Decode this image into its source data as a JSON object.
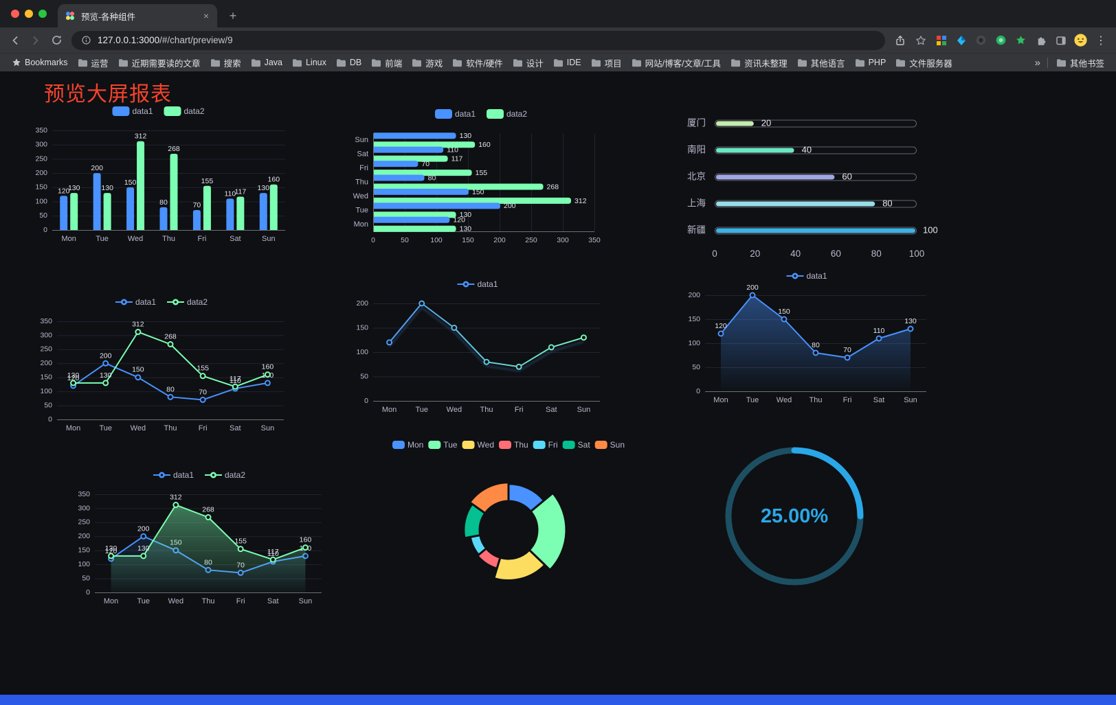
{
  "browser": {
    "tab_title": "预览-各种组件",
    "url_host": "127.0.0.1:3000",
    "url_path": "/#/chart/preview/9",
    "icons": {
      "tab_close": "×",
      "new_tab": "+",
      "menu": "⋮"
    },
    "bookmarks_bar": {
      "root_label": "Bookmarks",
      "folders": [
        "运营",
        "近期需要读的文章",
        "搜索",
        "Java",
        "Linux",
        "DB",
        "前端",
        "游戏",
        "软件/硬件",
        "设计",
        "IDE",
        "项目",
        "网站/博客/文章/工具",
        "资讯未整理",
        "其他语言",
        "PHP",
        "文件服务器"
      ],
      "overflow": "»",
      "other_label": "其他书签"
    }
  },
  "page": {
    "title": "预览大屏报表",
    "title_color": "#f5432c",
    "background": "#0e1013",
    "footer_color": "#2b59e8"
  },
  "chart_data": [
    {
      "id": "bar-grouped",
      "type": "bar",
      "orientation": "vertical",
      "categories": [
        "Mon",
        "Tue",
        "Wed",
        "Thu",
        "Fri",
        "Sat",
        "Sun"
      ],
      "series": [
        {
          "name": "data1",
          "color": "#4992ff",
          "values": [
            120,
            200,
            150,
            80,
            70,
            110,
            130
          ]
        },
        {
          "name": "data2",
          "color": "#7cffb2",
          "values": [
            130,
            130,
            312,
            268,
            155,
            117,
            160
          ]
        }
      ],
      "ylim": [
        0,
        350
      ],
      "ystep": 50,
      "value_labels": true,
      "legend_position": "top",
      "grid": true
    },
    {
      "id": "bar-horizontal",
      "type": "bar",
      "orientation": "horizontal",
      "categories": [
        "Mon",
        "Tue",
        "Wed",
        "Thu",
        "Fri",
        "Sat",
        "Sun"
      ],
      "series": [
        {
          "name": "data1",
          "color": "#4992ff",
          "values": [
            120,
            200,
            150,
            80,
            70,
            110,
            130
          ]
        },
        {
          "name": "data2",
          "color": "#7cffb2",
          "values": [
            130,
            130,
            312,
            268,
            155,
            117,
            160
          ]
        }
      ],
      "xlim": [
        0,
        350
      ],
      "xstep": 50,
      "value_labels": true,
      "legend_position": "top",
      "grid": true
    },
    {
      "id": "capsule-bars",
      "type": "bar",
      "subtype": "capsule",
      "rows": [
        {
          "label": "厦门",
          "value": 20,
          "color": "#c4ebad"
        },
        {
          "label": "南阳",
          "value": 40,
          "color": "#6be6c1"
        },
        {
          "label": "北京",
          "value": 60,
          "color": "#a0a7e6"
        },
        {
          "label": "上海",
          "value": 80,
          "color": "#96dee8"
        },
        {
          "label": "新疆",
          "value": 100,
          "color": "#3fb1e3"
        }
      ],
      "xlim": [
        0,
        100
      ],
      "xticks": [
        0,
        20,
        40,
        60,
        80,
        100
      ],
      "value_labels": true
    },
    {
      "id": "line-two",
      "type": "line",
      "categories": [
        "Mon",
        "Tue",
        "Wed",
        "Thu",
        "Fri",
        "Sat",
        "Sun"
      ],
      "series": [
        {
          "name": "data1",
          "color": "#4992ff",
          "values": [
            120,
            200,
            150,
            80,
            70,
            110,
            130
          ]
        },
        {
          "name": "data2",
          "color": "#7cffb2",
          "values": [
            130,
            130,
            312,
            268,
            155,
            117,
            160
          ]
        }
      ],
      "ylim": [
        0,
        350
      ],
      "ystep": 50,
      "value_labels": true,
      "legend_position": "top",
      "grid": true
    },
    {
      "id": "line-gradient",
      "type": "line",
      "categories": [
        "Mon",
        "Tue",
        "Wed",
        "Thu",
        "Fri",
        "Sat",
        "Sun"
      ],
      "series": [
        {
          "name": "data1",
          "gradient": [
            "#4992ff",
            "#7cffb2"
          ],
          "color": "#4992ff",
          "values": [
            120,
            200,
            150,
            80,
            70,
            110,
            130
          ]
        }
      ],
      "ylim": [
        0,
        200
      ],
      "ystep": 50,
      "value_labels": false,
      "shadow": true,
      "legend_position": "top",
      "grid": true
    },
    {
      "id": "line-area",
      "type": "area",
      "categories": [
        "Mon",
        "Tue",
        "Wed",
        "Thu",
        "Fri",
        "Sat",
        "Sun"
      ],
      "series": [
        {
          "name": "data1",
          "color": "#4992ff",
          "values": [
            120,
            200,
            150,
            80,
            70,
            110,
            130
          ],
          "area": true,
          "area_opacity": 0.45
        }
      ],
      "ylim": [
        0,
        200
      ],
      "ystep": 50,
      "value_labels": true,
      "legend_position": "top",
      "grid": true
    },
    {
      "id": "line-two-area",
      "type": "area",
      "categories": [
        "Mon",
        "Tue",
        "Wed",
        "Thu",
        "Fri",
        "Sat",
        "Sun"
      ],
      "series": [
        {
          "name": "data1",
          "color": "#4992ff",
          "values": [
            120,
            200,
            150,
            80,
            70,
            110,
            130
          ],
          "area": true,
          "area_opacity": 0.22
        },
        {
          "name": "data2",
          "color": "#7cffb2",
          "values": [
            130,
            130,
            312,
            268,
            155,
            117,
            160
          ],
          "area": true,
          "area_opacity": 0.5
        }
      ],
      "ylim": [
        0,
        350
      ],
      "ystep": 50,
      "value_labels": true,
      "legend_position": "top",
      "grid": true
    },
    {
      "id": "rose-pie",
      "type": "pie",
      "subtype": "rose",
      "legend_position": "top",
      "items": [
        {
          "name": "Mon",
          "value": 120,
          "color": "#4992ff"
        },
        {
          "name": "Tue",
          "value": 200,
          "color": "#7cffb2"
        },
        {
          "name": "Wed",
          "value": 150,
          "color": "#fddd60"
        },
        {
          "name": "Thu",
          "value": 80,
          "color": "#ff6e76"
        },
        {
          "name": "Fri",
          "value": 70,
          "color": "#58d9f9"
        },
        {
          "name": "Sat",
          "value": 110,
          "color": "#05c091"
        },
        {
          "name": "Sun",
          "value": 130,
          "color": "#ff8a45"
        }
      ]
    },
    {
      "id": "progress-gauge",
      "type": "gauge",
      "value": 25,
      "label": "25.00%",
      "color": "#2aa7e8",
      "track_color": "#1d4f63"
    }
  ]
}
